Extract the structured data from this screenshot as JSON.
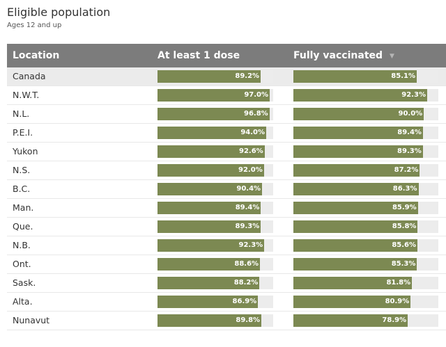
{
  "title": "Eligible population",
  "subtitle": "Ages 12 and up",
  "colors": {
    "header_bg": "#7c7c7c",
    "bar": "#7c8952",
    "track": "#ececec",
    "highlight_row": "#ebebeb"
  },
  "header": {
    "location": "Location",
    "col1": "At least 1 dose",
    "col2": "Fully vaccinated",
    "sort_icon": "sort-descending-icon"
  },
  "chart_data": {
    "type": "table",
    "value_range": [
      0,
      100
    ],
    "columns": [
      "Location",
      "At least 1 dose",
      "Fully vaccinated"
    ],
    "rows": [
      {
        "location": "Canada",
        "one_dose": 89.2,
        "one_dose_label": "89.2%",
        "full": 85.1,
        "full_label": "85.1%"
      },
      {
        "location": "N.W.T.",
        "one_dose": 97.0,
        "one_dose_label": "97.0%",
        "full": 92.3,
        "full_label": "92.3%"
      },
      {
        "location": "N.L.",
        "one_dose": 96.8,
        "one_dose_label": "96.8%",
        "full": 90.0,
        "full_label": "90.0%"
      },
      {
        "location": "P.E.I.",
        "one_dose": 94.0,
        "one_dose_label": "94.0%",
        "full": 89.4,
        "full_label": "89.4%"
      },
      {
        "location": "Yukon",
        "one_dose": 92.6,
        "one_dose_label": "92.6%",
        "full": 89.3,
        "full_label": "89.3%"
      },
      {
        "location": "N.S.",
        "one_dose": 92.0,
        "one_dose_label": "92.0%",
        "full": 87.2,
        "full_label": "87.2%"
      },
      {
        "location": "B.C.",
        "one_dose": 90.4,
        "one_dose_label": "90.4%",
        "full": 86.3,
        "full_label": "86.3%"
      },
      {
        "location": "Man.",
        "one_dose": 89.4,
        "one_dose_label": "89.4%",
        "full": 85.9,
        "full_label": "85.9%"
      },
      {
        "location": "Que.",
        "one_dose": 89.3,
        "one_dose_label": "89.3%",
        "full": 85.8,
        "full_label": "85.8%"
      },
      {
        "location": "N.B.",
        "one_dose": 92.3,
        "one_dose_label": "92.3%",
        "full": 85.6,
        "full_label": "85.6%"
      },
      {
        "location": "Ont.",
        "one_dose": 88.6,
        "one_dose_label": "88.6%",
        "full": 85.3,
        "full_label": "85.3%"
      },
      {
        "location": "Sask.",
        "one_dose": 88.2,
        "one_dose_label": "88.2%",
        "full": 81.8,
        "full_label": "81.8%"
      },
      {
        "location": "Alta.",
        "one_dose": 86.9,
        "one_dose_label": "86.9%",
        "full": 80.9,
        "full_label": "80.9%"
      },
      {
        "location": "Nunavut",
        "one_dose": 89.8,
        "one_dose_label": "89.8%",
        "full": 78.9,
        "full_label": "78.9%"
      }
    ]
  }
}
